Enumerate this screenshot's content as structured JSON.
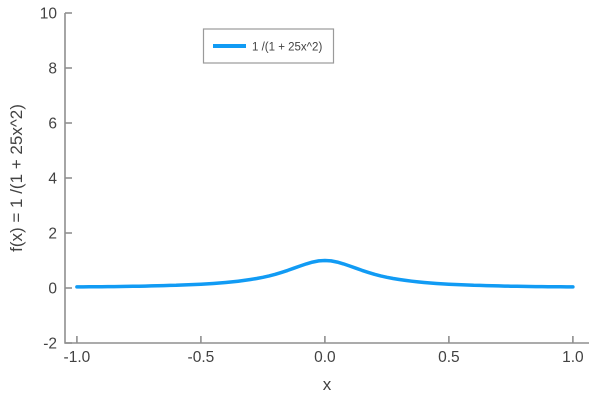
{
  "colors": {
    "line": "#119bf4",
    "axis": "#8f8f8f",
    "text": "#424242",
    "legend_border": "#9a9a9a",
    "background": "#ffffff"
  },
  "legend": {
    "entries": [
      {
        "label": "1 /(1 + 25x^2)",
        "color": "#119bf4"
      }
    ]
  },
  "chart_data": {
    "type": "line",
    "title": "",
    "xlabel": "x",
    "ylabel": "f(x) = 1 /(1 + 25x^2)",
    "xlim": [
      -1.048,
      1.065
    ],
    "ylim": [
      -2,
      10
    ],
    "grid": false,
    "legend_position": "inside-top, left-of-center, boxed",
    "axis_style": "left and bottom spines only, inward ticks",
    "x_ticks": {
      "values": [
        -1,
        -0.5,
        0,
        0.5,
        1
      ],
      "labels": [
        "-1.0",
        "-0.5",
        "0.0",
        "0.5",
        "1.0"
      ]
    },
    "y_ticks": {
      "values": [
        -2,
        0,
        2,
        4,
        6,
        8,
        10
      ],
      "labels": [
        "-2",
        "0",
        "2",
        "4",
        "6",
        "8",
        "10"
      ]
    },
    "series": [
      {
        "name": "1 /(1 + 25x^2)",
        "color": "#119bf4",
        "x": [
          -1.0,
          -0.975,
          -0.95,
          -0.925,
          -0.9,
          -0.875,
          -0.85,
          -0.825,
          -0.8,
          -0.775,
          -0.75,
          -0.725,
          -0.7,
          -0.675,
          -0.65,
          -0.625,
          -0.6,
          -0.575,
          -0.55,
          -0.525,
          -0.5,
          -0.475,
          -0.45,
          -0.425,
          -0.4,
          -0.375,
          -0.35,
          -0.325,
          -0.3,
          -0.275,
          -0.25,
          -0.225,
          -0.2,
          -0.175,
          -0.15,
          -0.125,
          -0.1,
          -0.075,
          -0.05,
          -0.025,
          0,
          0.025,
          0.05,
          0.075,
          0.1,
          0.125,
          0.15,
          0.175,
          0.2,
          0.225,
          0.25,
          0.275,
          0.3,
          0.325,
          0.35,
          0.375,
          0.4,
          0.425,
          0.45,
          0.475,
          0.5,
          0.525,
          0.55,
          0.575,
          0.6,
          0.625,
          0.65,
          0.675,
          0.7,
          0.725,
          0.75,
          0.775,
          0.8,
          0.825,
          0.85,
          0.875,
          0.9,
          0.925,
          0.95,
          0.975,
          1.0
        ],
        "y": [
          0.0385,
          0.0404,
          0.0424,
          0.0447,
          0.0471,
          0.0497,
          0.0525,
          0.0555,
          0.0588,
          0.0624,
          0.0664,
          0.0707,
          0.0755,
          0.0807,
          0.0865,
          0.0929,
          0.1,
          0.1079,
          0.1168,
          0.1267,
          0.1379,
          0.1506,
          0.1649,
          0.1813,
          0.2,
          0.2215,
          0.2462,
          0.2747,
          0.3077,
          0.3459,
          0.3902,
          0.4414,
          0.5,
          0.5664,
          0.64,
          0.7191,
          0.8,
          0.8767,
          0.9412,
          0.9846,
          1.0,
          0.9846,
          0.9412,
          0.8767,
          0.8,
          0.7191,
          0.64,
          0.5664,
          0.5,
          0.4414,
          0.3902,
          0.3459,
          0.3077,
          0.2747,
          0.2462,
          0.2215,
          0.2,
          0.1813,
          0.1649,
          0.1506,
          0.1379,
          0.1267,
          0.1168,
          0.1079,
          0.1,
          0.0929,
          0.0865,
          0.0807,
          0.0755,
          0.0707,
          0.0664,
          0.0624,
          0.0588,
          0.0555,
          0.0525,
          0.0497,
          0.0471,
          0.0447,
          0.0424,
          0.0404,
          0.0385
        ]
      }
    ]
  }
}
